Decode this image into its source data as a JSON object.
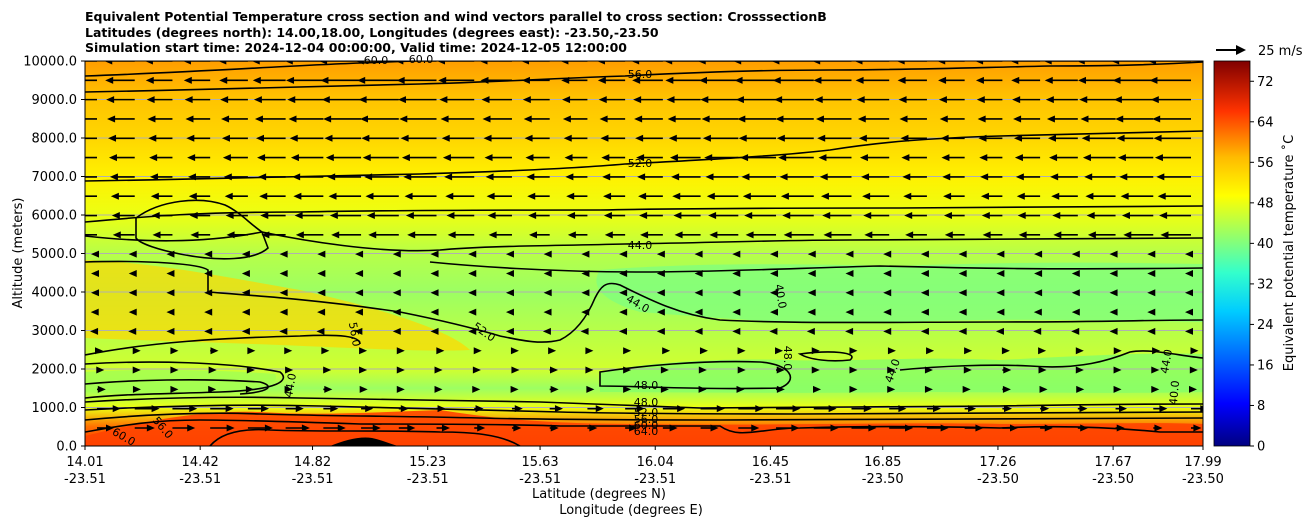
{
  "chart_data": {
    "type": "heatmap",
    "title_lines": [
      "Equivalent Potential Temperature cross section and wind vectors parallel to cross section: CrosssectionB",
      "Latitudes (degrees north): 14.00,18.00, Longitudes (degrees east): -23.50,-23.50",
      "Simulation start time: 2024-12-04 00:00:00, Valid time: 2024-12-05 12:00:00"
    ],
    "ylabel": "Altitude (meters)",
    "xlabel_line1": "Latitude (degrees N)",
    "xlabel_line2": "Longitude (degrees E)",
    "ylim": [
      0,
      10000
    ],
    "y_ticks": [
      "0.0",
      "1000.0",
      "2000.0",
      "3000.0",
      "4000.0",
      "5000.0",
      "6000.0",
      "7000.0",
      "8000.0",
      "9000.0",
      "10000.0"
    ],
    "x_ticks": [
      {
        "lat": "14.01",
        "lon": "-23.51"
      },
      {
        "lat": "14.42",
        "lon": "-23.51"
      },
      {
        "lat": "14.82",
        "lon": "-23.51"
      },
      {
        "lat": "15.23",
        "lon": "-23.51"
      },
      {
        "lat": "15.63",
        "lon": "-23.51"
      },
      {
        "lat": "16.04",
        "lon": "-23.51"
      },
      {
        "lat": "16.45",
        "lon": "-23.51"
      },
      {
        "lat": "16.85",
        "lon": "-23.50"
      },
      {
        "lat": "17.26",
        "lon": "-23.50"
      },
      {
        "lat": "17.67",
        "lon": "-23.50"
      },
      {
        "lat": "17.99",
        "lon": "-23.50"
      }
    ],
    "grid": "horizontal",
    "colorbar": {
      "label": "Equivalent potential temperature ˚C",
      "range": [
        0,
        76
      ],
      "ticks": [
        "0",
        "8",
        "16",
        "24",
        "32",
        "40",
        "48",
        "56",
        "64",
        "72"
      ]
    },
    "wind_key_label": "25 m/s",
    "contour_labels": [
      "60.0",
      "60.0",
      "56.0",
      "52.0",
      "44.0",
      "44.0",
      "40.0",
      "56.0",
      "52.0",
      "48.0",
      "48.0",
      "44.0",
      "40.0",
      "44.0",
      "44.0",
      "48.0",
      "52.0",
      "56.0",
      "60.0",
      "64.0",
      "56.0",
      "60.0"
    ],
    "theta_e_bands": [
      {
        "alt": 0,
        "value": 66
      },
      {
        "alt": 500,
        "value": 62
      },
      {
        "alt": 1000,
        "value": 48
      },
      {
        "alt": 1500,
        "value": 42
      },
      {
        "alt": 2000,
        "value": 46
      },
      {
        "alt": 3000,
        "value": 44
      },
      {
        "alt": 4000,
        "value": 42
      },
      {
        "alt": 5000,
        "value": 44
      },
      {
        "alt": 6000,
        "value": 48
      },
      {
        "alt": 7000,
        "value": 51
      },
      {
        "alt": 8000,
        "value": 54
      },
      {
        "alt": 9000,
        "value": 56
      },
      {
        "alt": 10000,
        "value": 59
      }
    ]
  }
}
